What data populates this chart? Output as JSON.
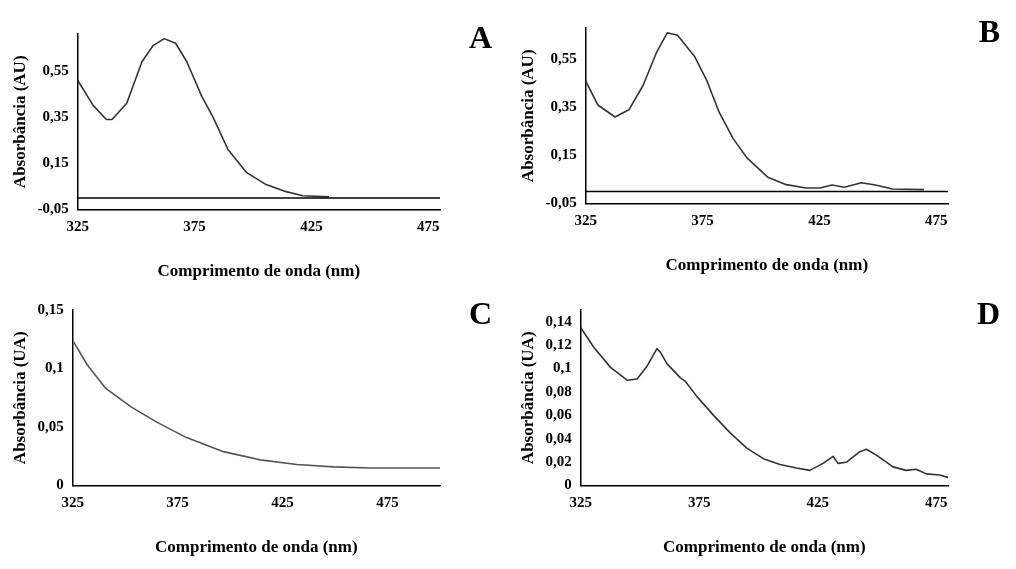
{
  "chart_data": [
    {
      "type": "line",
      "xlabel": "Comprimento de onda (nm)",
      "ylabel": "Absorbância (AU)",
      "annotations": [
        "A"
      ],
      "color": "#333333",
      "marker": "none",
      "grid": false,
      "legend": false,
      "x": [
        325,
        331.7,
        337.3,
        339.7,
        346,
        352.5,
        357.3,
        362,
        366.9,
        371.7,
        378.1,
        382.9,
        389.3,
        397.3,
        405.3,
        413.3,
        421.3,
        432.5
      ],
      "values": [
        0.51,
        0.4,
        0.34,
        0.34,
        0.41,
        0.59,
        0.66,
        0.69,
        0.67,
        0.59,
        0.44,
        0.35,
        0.21,
        0.11,
        0.06,
        0.03,
        0.01,
        0.005
      ],
      "xlim": [
        325,
        480
      ],
      "xticks": [
        325,
        375,
        425,
        475
      ],
      "ylim": [
        -0.05,
        0.71
      ],
      "yticks": [
        {
          "value": -0.05,
          "label": "-0,05"
        },
        {
          "value": 0.15,
          "label": "0,15"
        },
        {
          "value": 0.35,
          "label": "0,35"
        },
        {
          "value": 0.55,
          "label": "0,55"
        }
      ],
      "ref_lines": [
        {
          "axis": "y",
          "value": 0,
          "color": "#000000"
        }
      ]
    },
    {
      "type": "line",
      "xlabel": "Comprimento de onda (nm)",
      "ylabel": "Absorbância (AU)",
      "annotations": [
        "B"
      ],
      "color": "#333333",
      "marker": "none",
      "grid": false,
      "legend": false,
      "x": [
        325,
        330.2,
        337.6,
        343.5,
        349.5,
        355.4,
        359.9,
        364.3,
        371.7,
        376.9,
        382.1,
        388.1,
        394,
        402.9,
        410.3,
        419.2,
        425.2,
        430.4,
        435.6,
        443,
        448.9,
        456.3,
        469.7
      ],
      "values": [
        0.46,
        0.36,
        0.31,
        0.34,
        0.44,
        0.58,
        0.66,
        0.65,
        0.56,
        0.46,
        0.33,
        0.22,
        0.14,
        0.06,
        0.03,
        0.015,
        0.015,
        0.027,
        0.018,
        0.037,
        0.027,
        0.011,
        0.008
      ],
      "xlim": [
        325,
        480
      ],
      "xticks": [
        325,
        375,
        425,
        475
      ],
      "ylim": [
        -0.05,
        0.68
      ],
      "yticks": [
        {
          "value": -0.05,
          "label": "-0,05"
        },
        {
          "value": 0.15,
          "label": "0,15"
        },
        {
          "value": 0.35,
          "label": "0,35"
        },
        {
          "value": 0.55,
          "label": "0,55"
        }
      ],
      "ref_lines": [
        {
          "axis": "y",
          "value": 0,
          "color": "#000000"
        }
      ]
    },
    {
      "type": "line",
      "xlabel": "Comprimento de onda (nm)",
      "ylabel": "Absorbância (UA)",
      "annotations": [
        "C"
      ],
      "color": "#555555",
      "marker": "none",
      "grid": false,
      "legend": false,
      "x": [
        325.4,
        332,
        340.8,
        353,
        365.3,
        379.3,
        396.8,
        414.3,
        431.8,
        449.3,
        466.8,
        484.3,
        500
      ],
      "values": [
        0.123,
        0.103,
        0.083,
        0.067,
        0.054,
        0.041,
        0.029,
        0.022,
        0.018,
        0.016,
        0.015,
        0.015,
        0.015
      ],
      "xlim": [
        325,
        500
      ],
      "xticks": [
        325,
        375,
        425,
        475
      ],
      "ylim": [
        0,
        0.15
      ],
      "yticks": [
        0,
        {
          "value": 0.05,
          "label": "0,05"
        },
        {
          "value": 0.1,
          "label": "0,1"
        },
        {
          "value": 0.15,
          "label": "0,15"
        }
      ]
    },
    {
      "type": "line",
      "xlabel": "Comprimento de onda (nm)",
      "ylabel": "Absorbância (UA)",
      "annotations": [
        "D"
      ],
      "color": "#333333",
      "marker": "none",
      "grid": false,
      "legend": false,
      "x": [
        325,
        330.6,
        337.6,
        344.6,
        348.8,
        353,
        357.2,
        358.6,
        361.5,
        367.1,
        369.2,
        374.1,
        381.1,
        388.1,
        395.1,
        402.1,
        409.1,
        416.1,
        421.7,
        427.3,
        431.5,
        433.6,
        437.2,
        442.8,
        445.6,
        449.8,
        456.8,
        462.4,
        466.6,
        470.8,
        476.4,
        480
      ],
      "values": [
        0.135,
        0.118,
        0.101,
        0.09,
        0.091,
        0.102,
        0.117,
        0.114,
        0.104,
        0.092,
        0.089,
        0.076,
        0.06,
        0.045,
        0.032,
        0.023,
        0.018,
        0.015,
        0.013,
        0.019,
        0.025,
        0.019,
        0.02,
        0.029,
        0.031,
        0.026,
        0.016,
        0.013,
        0.014,
        0.01,
        0.009,
        0.007
      ],
      "xlim": [
        325,
        480
      ],
      "xticks": [
        325,
        375,
        425,
        475
      ],
      "ylim": [
        0,
        0.15
      ],
      "yticks": [
        0,
        {
          "value": 0.02,
          "label": "0,02"
        },
        {
          "value": 0.04,
          "label": "0,04"
        },
        {
          "value": 0.06,
          "label": "0,06"
        },
        {
          "value": 0.08,
          "label": "0,08"
        },
        {
          "value": 0.1,
          "label": "0,1"
        },
        {
          "value": 0.12,
          "label": "0,12"
        },
        {
          "value": 0.14,
          "label": "0,14"
        }
      ]
    }
  ]
}
